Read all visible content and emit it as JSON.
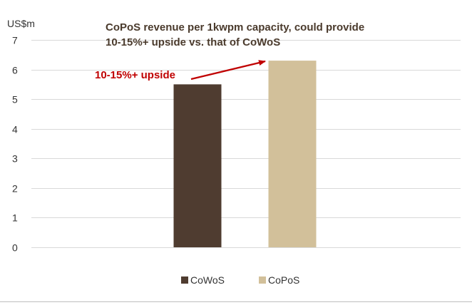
{
  "chart_data": {
    "type": "bar",
    "title_lines": [
      "CoPoS revenue per 1kwpm capacity, could provide",
      "10-15%+ upside vs. that of CoWoS"
    ],
    "unit_label": "US$m",
    "categories": [
      "CoWoS",
      "CoPoS"
    ],
    "values": [
      5.5,
      6.3
    ],
    "colors": [
      "#4f3c30",
      "#d2c09a"
    ],
    "ylim": [
      0,
      7
    ],
    "yticks": [
      "0",
      "1",
      "2",
      "3",
      "4",
      "5",
      "6",
      "7"
    ],
    "grid": true,
    "legend": {
      "position": "bottom",
      "entries": [
        "CoWoS",
        "CoPoS"
      ]
    },
    "annotation": {
      "text": "10-15%+ upside",
      "color": "#c00000"
    }
  }
}
